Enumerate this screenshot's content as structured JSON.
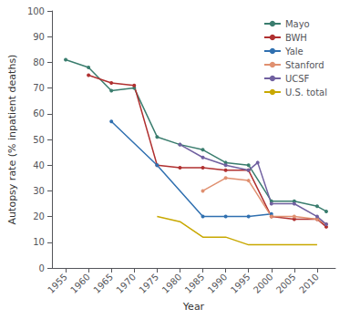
{
  "chart_data": {
    "type": "line",
    "xlabel": "Year",
    "ylabel": "Autopsy rate (% inpatient deaths)",
    "series": [
      {
        "name": "Mayo",
        "color": "#3a7d6e",
        "marker": "o",
        "x": [
          1955,
          1960,
          1965,
          1970,
          1975,
          1980,
          1985,
          1990,
          1995,
          2000,
          2005,
          2010,
          2012
        ],
        "values": [
          81,
          78,
          69,
          70,
          51,
          48,
          46,
          41,
          40,
          26,
          26,
          24,
          22
        ]
      },
      {
        "name": "BWH",
        "color": "#b03030",
        "marker": "o",
        "x": [
          1960,
          1965,
          1970,
          1975,
          1980,
          1985,
          1990,
          1995,
          2000,
          2005,
          2010,
          2012
        ],
        "values": [
          75,
          72,
          71,
          40,
          39,
          39,
          38,
          38,
          20,
          19,
          19,
          16
        ]
      },
      {
        "name": "Yale",
        "color": "#3070b0",
        "marker": "o",
        "x": [
          1965,
          1975,
          1985,
          1990,
          1995,
          2000
        ],
        "values": [
          57,
          40,
          20,
          20,
          20,
          21
        ]
      },
      {
        "name": "Stanford",
        "color": "#e09070",
        "marker": "o",
        "x": [
          1985,
          1990,
          1995,
          2000,
          2005,
          2010,
          2012
        ],
        "values": [
          30,
          35,
          34,
          20,
          20,
          19,
          17
        ]
      },
      {
        "name": "UCSF",
        "color": "#7060a0",
        "marker": "o",
        "x": [
          1980,
          1985,
          1990,
          1995,
          1997,
          2000,
          2005,
          2010,
          2012
        ],
        "values": [
          48,
          43,
          40,
          38,
          41,
          25,
          25,
          20,
          17
        ]
      },
      {
        "name": "U.S. total",
        "color": "#c8a800",
        "x": [
          1975,
          1980,
          1985,
          1990,
          1995,
          2000,
          2005,
          2010
        ],
        "values": [
          20,
          18,
          12,
          12,
          9,
          9,
          9,
          9
        ]
      }
    ],
    "xlim": [
      1952,
      2014
    ],
    "xticks": [
      1955,
      1960,
      1965,
      1970,
      1975,
      1980,
      1985,
      1990,
      1995,
      2000,
      2005,
      2010
    ],
    "ylim": [
      0,
      100
    ],
    "yticks": [
      0,
      10,
      20,
      30,
      40,
      50,
      60,
      70,
      80,
      90,
      100
    ],
    "grid": false,
    "legend": "upper right"
  }
}
